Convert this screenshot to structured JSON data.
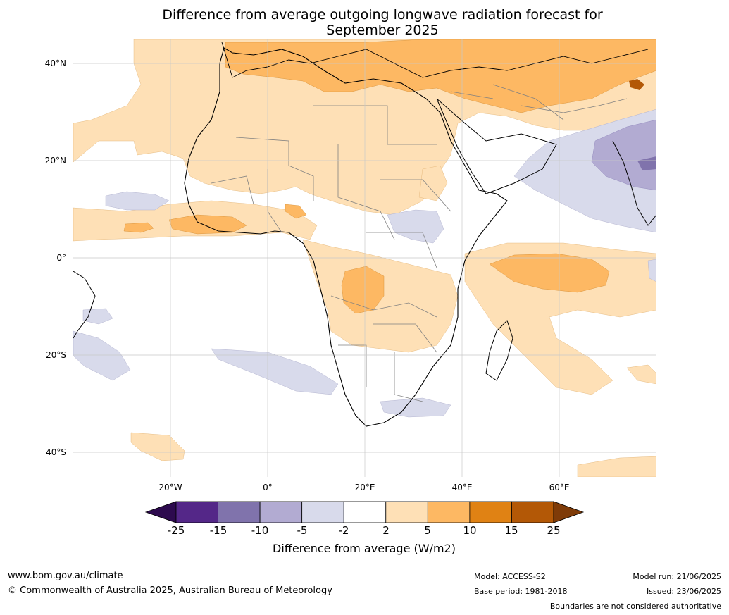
{
  "title_line1": "Difference from average outgoing longwave radiation forecast for",
  "title_line2": "September 2025",
  "map": {
    "lat_labels": [
      "40°N",
      "20°N",
      "0°",
      "20°S",
      "40°S"
    ],
    "lon_labels": [
      "20°W",
      "0°",
      "20°E",
      "40°E",
      "60°E"
    ],
    "grid": true
  },
  "colorbar": {
    "ticks": [
      "-25",
      "-15",
      "-10",
      "-5",
      "-2",
      "2",
      "5",
      "10",
      "15",
      "25"
    ],
    "colors": [
      "#2d0a4e",
      "#542788",
      "#8073ac",
      "#b2abd2",
      "#d8daeb",
      "#ffffff",
      "#fee0b6",
      "#fdb863",
      "#e08214",
      "#b35806",
      "#7f3b08"
    ],
    "label": "Difference from average (W/m2)"
  },
  "footer": {
    "url": "www.bom.gov.au/climate",
    "copyright": "© Commonwealth of Australia 2025, Australian Bureau of Meteorology",
    "model": "Model: ACCESS-S2",
    "base_period": "Base period: 1981-2018",
    "model_run": "Model run: 21/06/2025",
    "issued": "Issued: 23/06/2025",
    "disclaimer": "Boundaries are not considered authoritative"
  }
}
